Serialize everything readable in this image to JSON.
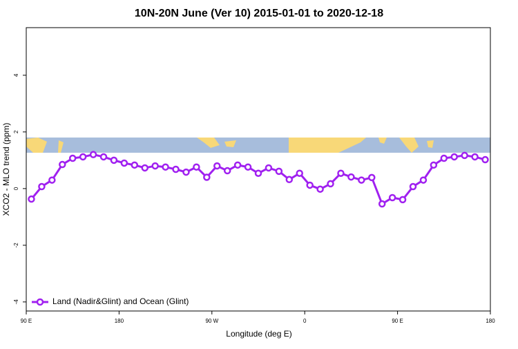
{
  "chart_data": {
    "type": "line",
    "title": "10N-20N June (Ver 10)   2015-01-01 to 2020-12-18",
    "x_label": "Longitude (deg E)",
    "y_label": "XCO2 - MLO trend (ppm)",
    "x": [
      95,
      105,
      115,
      125,
      135,
      145,
      155,
      165,
      175,
      185,
      195,
      205,
      215,
      225,
      235,
      245,
      255,
      265,
      275,
      285,
      295,
      305,
      315,
      325,
      335,
      345,
      355,
      365,
      375,
      385,
      395,
      405,
      415,
      425,
      435,
      445,
      455,
      465,
      475,
      485,
      495,
      505,
      515,
      525,
      535
    ],
    "series": [
      {
        "name": "Land (Nadir&Glint) and Ocean (Glint)",
        "color": "#a020f0",
        "values": [
          -0.37,
          0.07,
          0.3,
          0.85,
          1.07,
          1.12,
          1.2,
          1.12,
          1.0,
          0.9,
          0.83,
          0.73,
          0.8,
          0.76,
          0.68,
          0.58,
          0.76,
          0.4,
          0.8,
          0.63,
          0.83,
          0.76,
          0.54,
          0.73,
          0.61,
          0.32,
          0.54,
          0.12,
          -0.02,
          0.17,
          0.54,
          0.41,
          0.3,
          0.39,
          -0.54,
          -0.32,
          -0.39,
          0.07,
          0.3,
          0.83,
          1.07,
          1.12,
          1.17,
          1.12,
          1.02
        ]
      }
    ],
    "xlim": [
      90,
      540
    ],
    "xticks": [
      {
        "value": 90,
        "label": "90 E"
      },
      {
        "value": 180,
        "label": "180"
      },
      {
        "value": 270,
        "label": "90 W"
      },
      {
        "value": 360,
        "label": "0"
      },
      {
        "value": 450,
        "label": "90 E"
      },
      {
        "value": 540,
        "label": "180"
      }
    ],
    "ylim": [
      -4.32,
      5.68
    ],
    "yticks": [
      -4,
      -2,
      0,
      2,
      4
    ],
    "legend": "bottom-left"
  }
}
